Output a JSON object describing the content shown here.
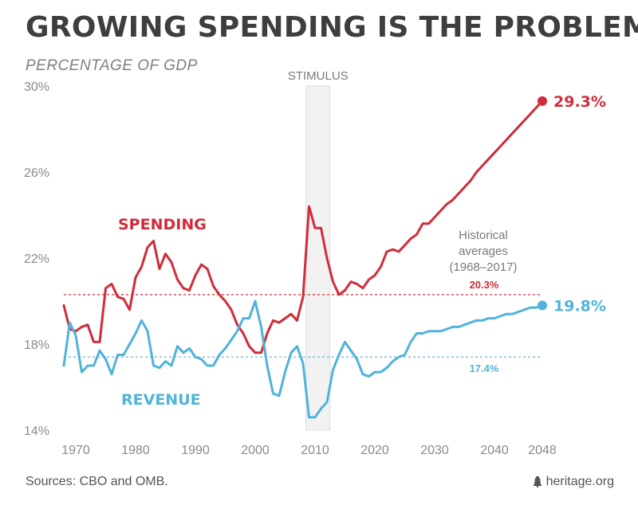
{
  "header": {
    "title": "GROWING SPENDING IS THE PROBLEM",
    "subtitle": "PERCENTAGE OF GDP"
  },
  "footer": {
    "sources": "Sources: CBO and OMB.",
    "brand": "heritage.org",
    "brand_icon": "liberty-bell-icon"
  },
  "colors": {
    "spending": "#d12c3a",
    "revenue": "#4fb3db",
    "band": "#f2f2f2",
    "text_gray": "#8a8a8a"
  },
  "chart_data": {
    "type": "line",
    "title": "GROWING SPENDING IS THE PROBLEM",
    "ylabel": "PERCENTAGE OF GDP",
    "ylim": [
      14,
      30
    ],
    "xlim": [
      1968,
      2048
    ],
    "yticks": [
      "14%",
      "18%",
      "22%",
      "26%",
      "30%"
    ],
    "ytick_values": [
      14,
      18,
      22,
      26,
      30
    ],
    "xticks": [
      "1970",
      "1980",
      "1990",
      "2000",
      "2010",
      "2020",
      "2030",
      "2040",
      "2048"
    ],
    "xtick_values": [
      1970,
      1980,
      1990,
      2000,
      2010,
      2020,
      2030,
      2040,
      2048
    ],
    "grid": false,
    "series": [
      {
        "name": "SPENDING",
        "key": "spending",
        "x": [
          1968,
          1969,
          1970,
          1971,
          1972,
          1973,
          1974,
          1975,
          1976,
          1977,
          1978,
          1979,
          1980,
          1981,
          1982,
          1983,
          1984,
          1985,
          1986,
          1987,
          1988,
          1989,
          1990,
          1991,
          1992,
          1993,
          1994,
          1995,
          1996,
          1997,
          1998,
          1999,
          2000,
          2001,
          2002,
          2003,
          2004,
          2005,
          2006,
          2007,
          2008,
          2009,
          2010,
          2011,
          2012,
          2013,
          2014,
          2015,
          2016,
          2017,
          2018,
          2019,
          2020,
          2021,
          2022,
          2023,
          2024,
          2025,
          2026,
          2027,
          2028,
          2029,
          2030,
          2031,
          2032,
          2033,
          2034,
          2035,
          2036,
          2037,
          2038,
          2039,
          2040,
          2041,
          2042,
          2043,
          2044,
          2045,
          2046,
          2047,
          2048
        ],
        "values": [
          19.8,
          18.7,
          18.6,
          18.8,
          18.9,
          18.1,
          18.1,
          20.6,
          20.8,
          20.2,
          20.1,
          19.6,
          21.1,
          21.6,
          22.5,
          22.8,
          21.5,
          22.2,
          21.8,
          21.0,
          20.6,
          20.5,
          21.2,
          21.7,
          21.5,
          20.7,
          20.3,
          20.0,
          19.6,
          18.9,
          18.5,
          17.9,
          17.6,
          17.6,
          18.5,
          19.1,
          19.0,
          19.2,
          19.4,
          19.1,
          20.2,
          24.4,
          23.4,
          23.4,
          22.0,
          20.9,
          20.3,
          20.5,
          20.9,
          20.8,
          20.6,
          21.0,
          21.2,
          21.6,
          22.3,
          22.4,
          22.3,
          22.6,
          22.9,
          23.1,
          23.6,
          23.6,
          23.9,
          24.2,
          24.5,
          24.7,
          25.0,
          25.3,
          25.6,
          26.0,
          26.3,
          26.6,
          26.9,
          27.2,
          27.5,
          27.8,
          28.1,
          28.4,
          28.7,
          29.0,
          29.3
        ],
        "label": "SPENDING",
        "end_label": "29.3%",
        "average": 20.3,
        "average_label": "20.3%"
      },
      {
        "name": "REVENUE",
        "key": "revenue",
        "x": [
          1968,
          1969,
          1970,
          1971,
          1972,
          1973,
          1974,
          1975,
          1976,
          1977,
          1978,
          1979,
          1980,
          1981,
          1982,
          1983,
          1984,
          1985,
          1986,
          1987,
          1988,
          1989,
          1990,
          1991,
          1992,
          1993,
          1994,
          1995,
          1996,
          1997,
          1998,
          1999,
          2000,
          2001,
          2002,
          2003,
          2004,
          2005,
          2006,
          2007,
          2008,
          2009,
          2010,
          2011,
          2012,
          2013,
          2014,
          2015,
          2016,
          2017,
          2018,
          2019,
          2020,
          2021,
          2022,
          2023,
          2024,
          2025,
          2026,
          2027,
          2028,
          2029,
          2030,
          2031,
          2032,
          2033,
          2034,
          2035,
          2036,
          2037,
          2038,
          2039,
          2040,
          2041,
          2042,
          2043,
          2044,
          2045,
          2046,
          2047,
          2048
        ],
        "values": [
          17.0,
          19.0,
          18.4,
          16.7,
          17.0,
          17.0,
          17.7,
          17.3,
          16.6,
          17.5,
          17.5,
          18.0,
          18.5,
          19.1,
          18.6,
          17.0,
          16.9,
          17.2,
          17.0,
          17.9,
          17.6,
          17.8,
          17.4,
          17.3,
          17.0,
          17.0,
          17.5,
          17.8,
          18.2,
          18.6,
          19.2,
          19.2,
          20.0,
          18.8,
          17.0,
          15.7,
          15.6,
          16.7,
          17.6,
          17.9,
          17.1,
          14.6,
          14.6,
          15.0,
          15.3,
          16.8,
          17.5,
          18.1,
          17.7,
          17.3,
          16.6,
          16.5,
          16.7,
          16.7,
          16.9,
          17.2,
          17.4,
          17.5,
          18.1,
          18.5,
          18.5,
          18.6,
          18.6,
          18.6,
          18.7,
          18.8,
          18.8,
          18.9,
          19.0,
          19.1,
          19.1,
          19.2,
          19.2,
          19.3,
          19.4,
          19.4,
          19.5,
          19.6,
          19.7,
          19.7,
          19.8
        ],
        "label": "REVENUE",
        "end_label": "19.8%",
        "average": 17.4,
        "average_label": "17.4%"
      }
    ],
    "shaded_band": {
      "label": "STIMULUS",
      "x_start": 2008.5,
      "x_end": 2012.5
    },
    "averages_note": [
      "Historical",
      "averages",
      "(1968–2017)"
    ]
  }
}
